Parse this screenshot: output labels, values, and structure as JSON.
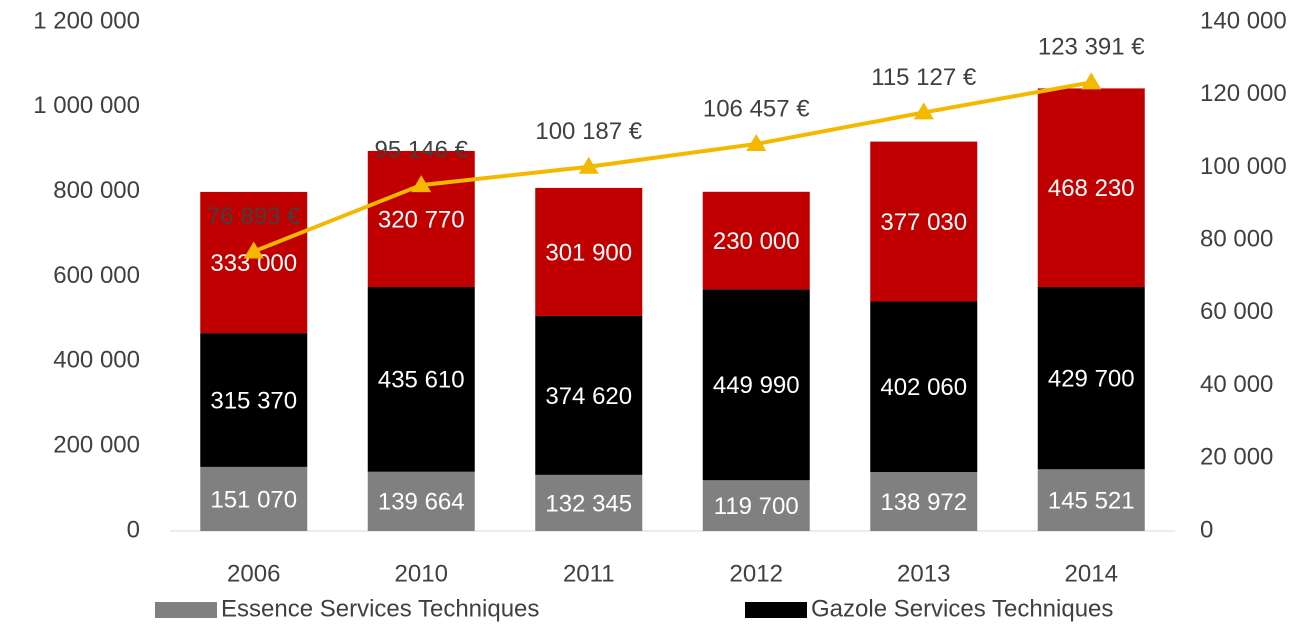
{
  "chart_data": {
    "type": "bar",
    "stacked": true,
    "categories": [
      "2006",
      "2010",
      "2011",
      "2012",
      "2013",
      "2014"
    ],
    "series": [
      {
        "name": "Essence Services Techniques",
        "color": "#808080",
        "values": [
          151070,
          139664,
          132345,
          119700,
          138972,
          145521
        ],
        "value_labels": [
          "151 070",
          "139 664",
          "132 345",
          "119 700",
          "138 972",
          "145 521"
        ]
      },
      {
        "name": "Gazole Services Techniques",
        "color": "#000000",
        "values": [
          315370,
          435610,
          374620,
          449990,
          402060,
          429700
        ],
        "value_labels": [
          "315 370",
          "435 610",
          "374 620",
          "449 990",
          "402 060",
          "429 700"
        ]
      },
      {
        "color": "#c00000",
        "values": [
          333000,
          320770,
          301900,
          230000,
          377030,
          468230
        ],
        "value_labels": [
          "333 000",
          "320 770",
          "301 900",
          "230 000",
          "377 030",
          "468 230"
        ]
      },
      {
        "type": "line",
        "axis": "y2",
        "color": "#f5b800",
        "values": [
          76893,
          95146,
          100187,
          106457,
          115127,
          123391
        ],
        "value_labels": [
          "76 893 €",
          "95 146 €",
          "100 187 €",
          "106 457 €",
          "115 127 €",
          "123 391 €"
        ]
      }
    ],
    "ylim": [
      0,
      1200000
    ],
    "yticks": [
      0,
      {
        "value": 200000,
        "label": "200 000"
      },
      {
        "value": 400000,
        "label": "400 000"
      },
      {
        "value": 600000,
        "label": "600 000"
      },
      {
        "value": 800000,
        "label": "800 000"
      },
      {
        "value": 1000000,
        "label": "1 000 000"
      },
      {
        "value": 1200000,
        "label": "1 200 000"
      }
    ],
    "y2lim": [
      0,
      140000
    ],
    "y2ticks": [
      0,
      {
        "value": 20000,
        "label": "20 000"
      },
      {
        "value": 40000,
        "label": "40 000"
      },
      {
        "value": 60000,
        "label": "60 000"
      },
      {
        "value": 80000,
        "label": "80 000"
      },
      {
        "value": 100000,
        "label": "100 000"
      },
      {
        "value": 120000,
        "label": "120 000"
      },
      {
        "value": 140000,
        "label": "140 000"
      }
    ],
    "legend": "bottom",
    "grid": false
  }
}
